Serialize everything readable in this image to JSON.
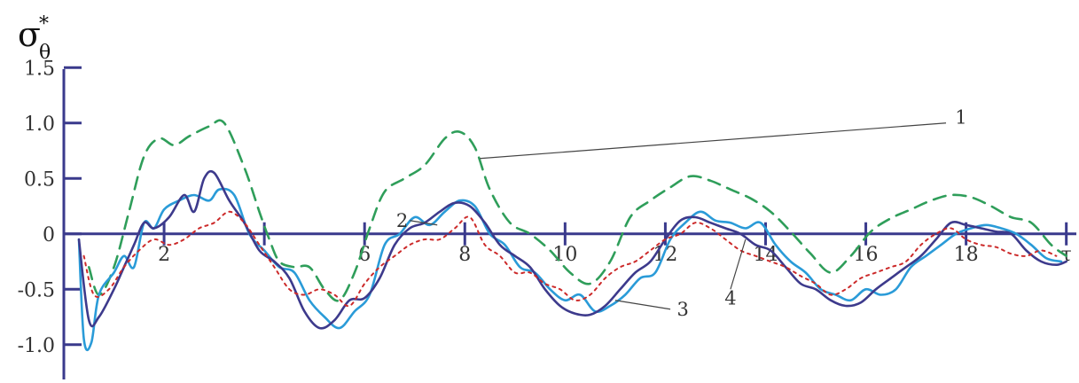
{
  "chart_data": {
    "type": "line",
    "ylabel": {
      "main": "σ",
      "sup": "*",
      "sub": "θ"
    },
    "xlabel": "",
    "x_ticks": [
      2,
      4,
      6,
      8,
      10,
      12,
      14,
      16,
      18,
      20
    ],
    "x_tick_labels": [
      "2",
      "",
      "6",
      "8",
      "10",
      "12",
      "14",
      "16",
      "18",
      "τ"
    ],
    "y_ticks": [
      {
        "value": 1.5,
        "label": "1.5"
      },
      {
        "value": 1.0,
        "label": "1.0"
      },
      {
        "value": 0.5,
        "label": "0.5"
      },
      {
        "value": 0,
        "label": "0"
      },
      {
        "value": -0.5,
        "label": "-0.5"
      },
      {
        "value": -1.0,
        "label": "-1.0"
      }
    ],
    "xlim": [
      0,
      20.2
    ],
    "ylim": [
      -1.25,
      1.95
    ],
    "grid": false,
    "legend": "curve labels 1-4 with leader lines",
    "series": [
      {
        "name": "1",
        "color": "#2f9e5a",
        "dash": "14,9",
        "points": [
          [
            0.5,
            -0.3
          ],
          [
            0.7,
            -0.55
          ],
          [
            1.0,
            -0.3
          ],
          [
            1.3,
            0.2
          ],
          [
            1.6,
            0.7
          ],
          [
            1.9,
            0.86
          ],
          [
            2.2,
            0.8
          ],
          [
            2.5,
            0.88
          ],
          [
            2.9,
            0.97
          ],
          [
            3.2,
            1.0
          ],
          [
            3.6,
            0.6
          ],
          [
            3.9,
            0.2
          ],
          [
            4.1,
            -0.05
          ],
          [
            4.3,
            -0.25
          ],
          [
            4.6,
            -0.3
          ],
          [
            4.9,
            -0.3
          ],
          [
            5.2,
            -0.5
          ],
          [
            5.5,
            -0.6
          ],
          [
            5.8,
            -0.35
          ],
          [
            6.1,
            0.05
          ],
          [
            6.4,
            0.38
          ],
          [
            6.8,
            0.5
          ],
          [
            7.2,
            0.62
          ],
          [
            7.6,
            0.86
          ],
          [
            7.9,
            0.92
          ],
          [
            8.2,
            0.78
          ],
          [
            8.5,
            0.4
          ],
          [
            8.9,
            0.1
          ],
          [
            9.3,
            0.0
          ],
          [
            9.7,
            -0.15
          ],
          [
            10.1,
            -0.35
          ],
          [
            10.5,
            -0.45
          ],
          [
            10.9,
            -0.25
          ],
          [
            11.3,
            0.15
          ],
          [
            11.7,
            0.3
          ],
          [
            12.1,
            0.42
          ],
          [
            12.5,
            0.52
          ],
          [
            12.9,
            0.48
          ],
          [
            13.3,
            0.4
          ],
          [
            13.7,
            0.32
          ],
          [
            14.1,
            0.2
          ],
          [
            14.5,
            0.02
          ],
          [
            14.9,
            -0.18
          ],
          [
            15.3,
            -0.35
          ],
          [
            15.7,
            -0.2
          ],
          [
            16.1,
            0.02
          ],
          [
            16.5,
            0.14
          ],
          [
            16.9,
            0.22
          ],
          [
            17.3,
            0.3
          ],
          [
            17.7,
            0.35
          ],
          [
            18.1,
            0.33
          ],
          [
            18.5,
            0.25
          ],
          [
            18.9,
            0.15
          ],
          [
            19.3,
            0.1
          ],
          [
            19.7,
            -0.1
          ],
          [
            20.0,
            -0.2
          ]
        ]
      },
      {
        "name": "2",
        "color": "#2a9bd8",
        "dash": "",
        "points": [
          [
            0.3,
            -0.05
          ],
          [
            0.4,
            -0.95
          ],
          [
            0.55,
            -0.98
          ],
          [
            0.7,
            -0.55
          ],
          [
            1.0,
            -0.35
          ],
          [
            1.2,
            -0.2
          ],
          [
            1.4,
            -0.3
          ],
          [
            1.6,
            0.1
          ],
          [
            1.8,
            0.05
          ],
          [
            2.0,
            0.22
          ],
          [
            2.3,
            0.3
          ],
          [
            2.6,
            0.35
          ],
          [
            2.9,
            0.3
          ],
          [
            3.1,
            0.4
          ],
          [
            3.4,
            0.35
          ],
          [
            3.7,
            0.0
          ],
          [
            4.0,
            -0.15
          ],
          [
            4.3,
            -0.3
          ],
          [
            4.6,
            -0.35
          ],
          [
            4.9,
            -0.6
          ],
          [
            5.2,
            -0.75
          ],
          [
            5.5,
            -0.85
          ],
          [
            5.8,
            -0.7
          ],
          [
            6.1,
            -0.55
          ],
          [
            6.4,
            -0.1
          ],
          [
            6.7,
            0.0
          ],
          [
            7.0,
            0.15
          ],
          [
            7.3,
            0.08
          ],
          [
            7.6,
            0.2
          ],
          [
            7.9,
            0.3
          ],
          [
            8.2,
            0.25
          ],
          [
            8.5,
            0.0
          ],
          [
            8.8,
            -0.1
          ],
          [
            9.1,
            -0.3
          ],
          [
            9.4,
            -0.35
          ],
          [
            9.7,
            -0.5
          ],
          [
            10.0,
            -0.6
          ],
          [
            10.3,
            -0.55
          ],
          [
            10.6,
            -0.7
          ],
          [
            10.9,
            -0.65
          ],
          [
            11.2,
            -0.55
          ],
          [
            11.5,
            -0.4
          ],
          [
            11.8,
            -0.35
          ],
          [
            12.1,
            -0.05
          ],
          [
            12.4,
            0.1
          ],
          [
            12.7,
            0.2
          ],
          [
            13.0,
            0.12
          ],
          [
            13.3,
            0.1
          ],
          [
            13.6,
            0.05
          ],
          [
            13.9,
            0.1
          ],
          [
            14.2,
            -0.1
          ],
          [
            14.5,
            -0.25
          ],
          [
            14.8,
            -0.35
          ],
          [
            15.1,
            -0.5
          ],
          [
            15.4,
            -0.55
          ],
          [
            15.7,
            -0.6
          ],
          [
            16.0,
            -0.5
          ],
          [
            16.3,
            -0.55
          ],
          [
            16.6,
            -0.5
          ],
          [
            16.9,
            -0.3
          ],
          [
            17.2,
            -0.2
          ],
          [
            17.5,
            -0.1
          ],
          [
            17.8,
            0.0
          ],
          [
            18.1,
            0.05
          ],
          [
            18.4,
            0.08
          ],
          [
            18.7,
            0.05
          ],
          [
            19.0,
            0.0
          ],
          [
            19.3,
            -0.1
          ],
          [
            19.6,
            -0.22
          ],
          [
            19.9,
            -0.25
          ]
        ]
      },
      {
        "name": "3",
        "color": "#3d3a8c",
        "dash": "",
        "points": [
          [
            0.3,
            -0.05
          ],
          [
            0.5,
            -0.78
          ],
          [
            0.7,
            -0.75
          ],
          [
            1.0,
            -0.5
          ],
          [
            1.2,
            -0.3
          ],
          [
            1.4,
            -0.1
          ],
          [
            1.6,
            0.1
          ],
          [
            1.8,
            0.05
          ],
          [
            2.1,
            0.15
          ],
          [
            2.4,
            0.35
          ],
          [
            2.6,
            0.2
          ],
          [
            2.8,
            0.5
          ],
          [
            3.0,
            0.55
          ],
          [
            3.3,
            0.3
          ],
          [
            3.6,
            0.1
          ],
          [
            3.9,
            -0.15
          ],
          [
            4.2,
            -0.25
          ],
          [
            4.5,
            -0.4
          ],
          [
            4.8,
            -0.7
          ],
          [
            5.1,
            -0.85
          ],
          [
            5.4,
            -0.78
          ],
          [
            5.7,
            -0.6
          ],
          [
            6.0,
            -0.58
          ],
          [
            6.3,
            -0.4
          ],
          [
            6.6,
            -0.1
          ],
          [
            6.9,
            0.05
          ],
          [
            7.2,
            0.1
          ],
          [
            7.5,
            0.2
          ],
          [
            7.8,
            0.28
          ],
          [
            8.1,
            0.25
          ],
          [
            8.4,
            0.1
          ],
          [
            8.7,
            -0.1
          ],
          [
            9.0,
            -0.2
          ],
          [
            9.3,
            -0.3
          ],
          [
            9.6,
            -0.5
          ],
          [
            9.9,
            -0.65
          ],
          [
            10.2,
            -0.72
          ],
          [
            10.5,
            -0.73
          ],
          [
            10.8,
            -0.65
          ],
          [
            11.1,
            -0.5
          ],
          [
            11.4,
            -0.35
          ],
          [
            11.7,
            -0.25
          ],
          [
            12.0,
            -0.05
          ],
          [
            12.3,
            0.12
          ],
          [
            12.6,
            0.15
          ],
          [
            12.9,
            0.1
          ],
          [
            13.2,
            0.05
          ],
          [
            13.5,
            0.0
          ],
          [
            13.8,
            -0.1
          ],
          [
            14.1,
            -0.15
          ],
          [
            14.4,
            -0.3
          ],
          [
            14.7,
            -0.45
          ],
          [
            15.0,
            -0.5
          ],
          [
            15.3,
            -0.6
          ],
          [
            15.6,
            -0.65
          ],
          [
            15.9,
            -0.62
          ],
          [
            16.2,
            -0.5
          ],
          [
            16.5,
            -0.4
          ],
          [
            16.8,
            -0.3
          ],
          [
            17.1,
            -0.2
          ],
          [
            17.4,
            -0.05
          ],
          [
            17.7,
            0.1
          ],
          [
            18.0,
            0.08
          ],
          [
            18.3,
            0.05
          ],
          [
            18.6,
            0.02
          ],
          [
            18.9,
            0.0
          ],
          [
            19.2,
            -0.15
          ],
          [
            19.5,
            -0.25
          ],
          [
            19.8,
            -0.28
          ],
          [
            20.0,
            -0.25
          ]
        ]
      },
      {
        "name": "4",
        "color": "#cc2a2a",
        "dash": "3,5",
        "points": [
          [
            0.4,
            -0.2
          ],
          [
            0.6,
            -0.55
          ],
          [
            0.9,
            -0.5
          ],
          [
            1.2,
            -0.3
          ],
          [
            1.5,
            -0.15
          ],
          [
            1.8,
            -0.05
          ],
          [
            2.1,
            -0.1
          ],
          [
            2.4,
            -0.05
          ],
          [
            2.7,
            0.05
          ],
          [
            3.0,
            0.1
          ],
          [
            3.3,
            0.2
          ],
          [
            3.6,
            0.1
          ],
          [
            3.9,
            -0.1
          ],
          [
            4.2,
            -0.3
          ],
          [
            4.5,
            -0.5
          ],
          [
            4.8,
            -0.55
          ],
          [
            5.1,
            -0.5
          ],
          [
            5.4,
            -0.55
          ],
          [
            5.7,
            -0.65
          ],
          [
            6.0,
            -0.45
          ],
          [
            6.3,
            -0.3
          ],
          [
            6.6,
            -0.2
          ],
          [
            6.9,
            -0.1
          ],
          [
            7.2,
            -0.05
          ],
          [
            7.5,
            -0.05
          ],
          [
            7.8,
            0.05
          ],
          [
            8.1,
            0.15
          ],
          [
            8.4,
            -0.1
          ],
          [
            8.7,
            -0.2
          ],
          [
            9.0,
            -0.35
          ],
          [
            9.3,
            -0.35
          ],
          [
            9.6,
            -0.45
          ],
          [
            9.9,
            -0.5
          ],
          [
            10.2,
            -0.6
          ],
          [
            10.5,
            -0.55
          ],
          [
            10.8,
            -0.4
          ],
          [
            11.1,
            -0.3
          ],
          [
            11.4,
            -0.25
          ],
          [
            11.7,
            -0.15
          ],
          [
            12.0,
            -0.05
          ],
          [
            12.3,
            0.0
          ],
          [
            12.6,
            0.1
          ],
          [
            12.9,
            0.05
          ],
          [
            13.2,
            -0.05
          ],
          [
            13.5,
            -0.15
          ],
          [
            13.8,
            -0.2
          ],
          [
            14.1,
            -0.25
          ],
          [
            14.4,
            -0.3
          ],
          [
            14.7,
            -0.38
          ],
          [
            15.0,
            -0.45
          ],
          [
            15.3,
            -0.55
          ],
          [
            15.6,
            -0.5
          ],
          [
            15.9,
            -0.4
          ],
          [
            16.2,
            -0.35
          ],
          [
            16.5,
            -0.3
          ],
          [
            16.8,
            -0.25
          ],
          [
            17.1,
            -0.1
          ],
          [
            17.4,
            0.0
          ],
          [
            17.7,
            0.05
          ],
          [
            18.0,
            -0.05
          ],
          [
            18.3,
            -0.1
          ],
          [
            18.6,
            -0.12
          ],
          [
            18.9,
            -0.18
          ],
          [
            19.2,
            -0.2
          ],
          [
            19.5,
            -0.15
          ],
          [
            19.8,
            -0.2
          ]
        ]
      }
    ],
    "curve_labels": [
      {
        "text": "1",
        "x": 17.9,
        "y": 1.05,
        "pointer": [
          [
            17.6,
            1.0
          ],
          [
            8.3,
            0.68
          ]
        ]
      },
      {
        "text": "2",
        "x": 6.75,
        "y": 0.12,
        "pointer": [
          [
            6.9,
            0.12
          ],
          [
            7.45,
            0.08
          ]
        ]
      },
      {
        "text": "3",
        "x": 12.35,
        "y": -0.68,
        "pointer": [
          [
            12.1,
            -0.68
          ],
          [
            11.0,
            -0.6
          ]
        ]
      },
      {
        "text": "4",
        "x": 13.3,
        "y": -0.58,
        "pointer": [
          [
            13.3,
            -0.5
          ],
          [
            13.6,
            -0.05
          ]
        ]
      }
    ]
  }
}
